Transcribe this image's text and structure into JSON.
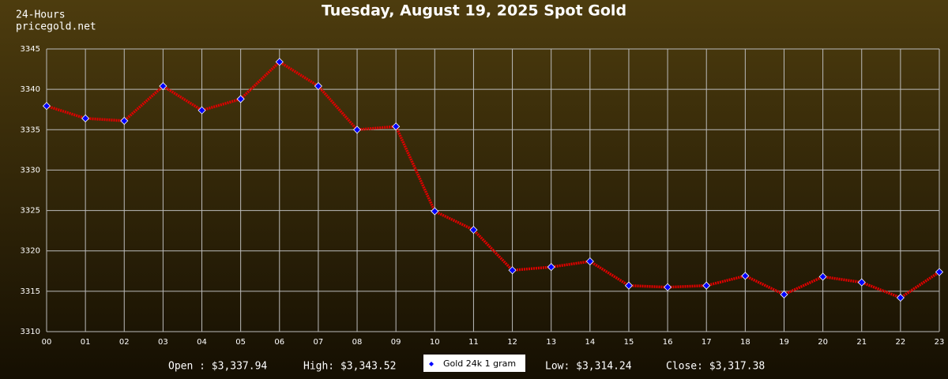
{
  "chart_data": {
    "type": "line",
    "title": "Tuesday, August 19, 2025 Spot Gold",
    "header": [
      "24-Hours",
      "pricegold.net"
    ],
    "stats": [
      "Open : $3,337.94",
      "High: $3,343.52",
      "Low: $3,314.24",
      "Close: $3,317.38"
    ],
    "categories": [
      "00",
      "01",
      "02",
      "03",
      "04",
      "05",
      "06",
      "07",
      "08",
      "09",
      "10",
      "11",
      "12",
      "13",
      "14",
      "15",
      "16",
      "17",
      "18",
      "19",
      "20",
      "21",
      "22",
      "23"
    ],
    "series": [
      {
        "name": "Gold 24k 1 gram",
        "color": "#e00000",
        "marker_color": "#0000ff",
        "values": [
          3337.94,
          3336.4,
          3336.1,
          3340.4,
          3337.4,
          3338.8,
          3343.4,
          3340.4,
          3335.0,
          3335.4,
          3324.9,
          3322.6,
          3317.6,
          3318.0,
          3318.7,
          3315.7,
          3315.5,
          3315.7,
          3316.9,
          3314.6,
          3316.8,
          3316.1,
          3314.2,
          3317.38
        ]
      }
    ],
    "ylim": [
      3310,
      3345
    ],
    "yticks": [
      3310,
      3315,
      3320,
      3325,
      3330,
      3335,
      3340,
      3345
    ],
    "grid": true
  }
}
